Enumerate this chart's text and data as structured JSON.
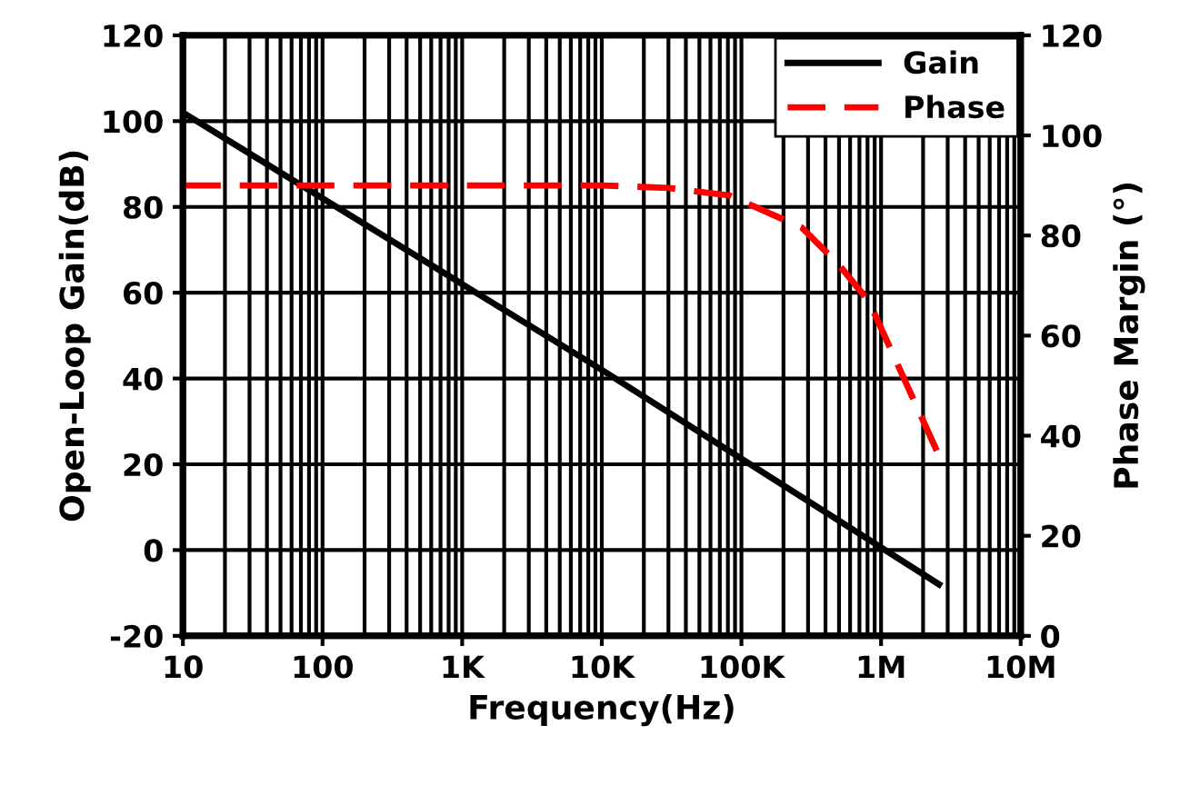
{
  "chart_data": {
    "type": "line",
    "log": "x",
    "xlabel": "Frequency(Hz)",
    "ylabel": "Open-Loop Gain(dB)",
    "y2label": "Phase Margin (°)",
    "xlim": [
      10,
      10000000
    ],
    "xticks": [
      10,
      100,
      {
        "value": 1000,
        "label": "1K"
      },
      {
        "value": 10000,
        "label": "10K"
      },
      {
        "value": 100000,
        "label": "100K"
      },
      {
        "value": 1000000,
        "label": "1M"
      },
      {
        "value": 10000000,
        "label": "10M"
      }
    ],
    "ylim": [
      -20,
      120
    ],
    "yticks": [
      -20,
      0,
      20,
      40,
      60,
      80,
      100,
      120
    ],
    "y2lim": [
      0,
      120
    ],
    "y2ticks": [
      0,
      20,
      40,
      60,
      80,
      100,
      120
    ],
    "grid": true,
    "legend": "top right",
    "series": [
      {
        "name": "Gain",
        "color": "#000000",
        "line_style": "solid",
        "x": [
          10,
          10000,
          2600000
        ],
        "values": [
          102,
          42,
          -8
        ]
      },
      {
        "name": "Phase",
        "color": "#ff0000",
        "line_style": "dashed",
        "axis": "y2",
        "x": [
          10,
          10000,
          30000,
          82000,
          270000,
          490000,
          820000,
          1300000,
          2600000
        ],
        "values": [
          90,
          90,
          89.5,
          88,
          81.6,
          74.4,
          66.8,
          54.5,
          36
        ]
      }
    ]
  }
}
